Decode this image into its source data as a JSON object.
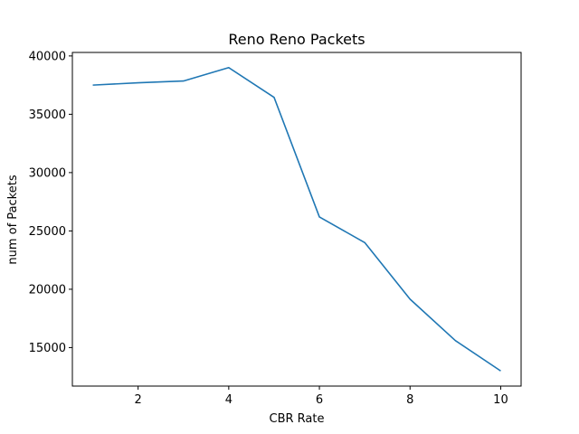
{
  "chart_data": {
    "type": "line",
    "title": "Reno Reno Packets",
    "xlabel": "CBR Rate",
    "ylabel": "num of Packets",
    "x": [
      1,
      2,
      3,
      4,
      5,
      6,
      7,
      8,
      9,
      10
    ],
    "series": [
      {
        "values": [
          37500,
          37700,
          37850,
          39000,
          36450,
          26200,
          24000,
          19150,
          15600,
          13000
        ],
        "color": "#1f77b4"
      }
    ],
    "xlim": [
      0.55,
      10.45
    ],
    "ylim": [
      11700,
      40300
    ],
    "xticks": [
      2,
      4,
      6,
      8,
      10
    ],
    "xtick_labels": [
      "2",
      "4",
      "6",
      "8",
      "10"
    ],
    "yticks": [
      15000,
      20000,
      25000,
      30000,
      35000,
      40000
    ],
    "ytick_labels": [
      "15000",
      "20000",
      "25000",
      "30000",
      "35000",
      "40000"
    ],
    "grid": false,
    "legend": false
  }
}
